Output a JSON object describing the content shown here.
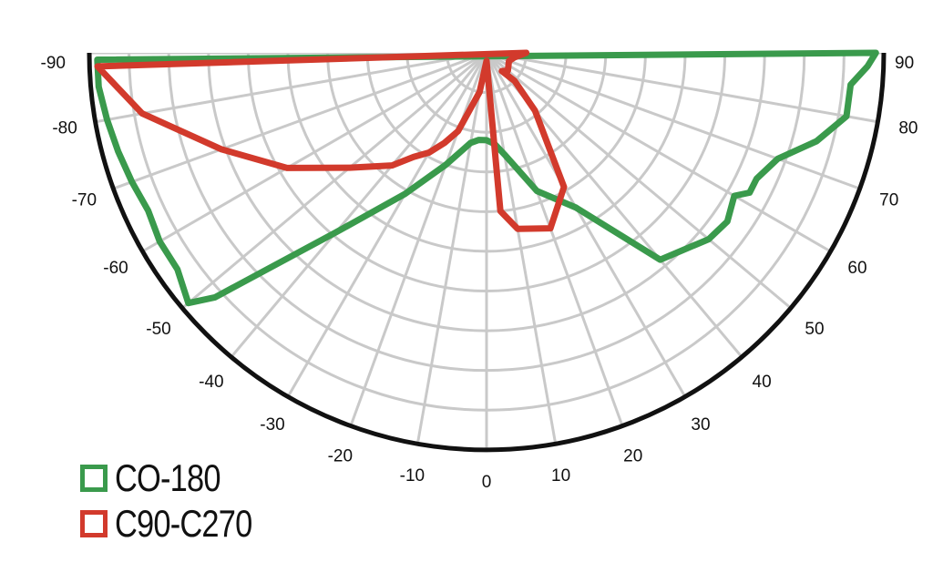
{
  "chart_data": {
    "type": "polar",
    "angle_ticks": [
      -90,
      -80,
      -70,
      -60,
      -50,
      -40,
      -30,
      -20,
      -10,
      0,
      10,
      20,
      30,
      40,
      50,
      60,
      70,
      80,
      90
    ],
    "angle_tick_labels": [
      "-90",
      "-80",
      "-70",
      "-60",
      "-50",
      "-40",
      "-30",
      "-20",
      "-10",
      "0",
      "10",
      "20",
      "30",
      "40",
      "50",
      "60",
      "70",
      "80",
      "90"
    ],
    "angle_range": [
      -90,
      90
    ],
    "radial_range": [
      0,
      1
    ],
    "grid": true,
    "legend_placement": "bottom-left",
    "series": [
      {
        "name": "CO-180",
        "color": "#3a9a4c",
        "theta": [
          -89,
          -85,
          -80,
          -75,
          -70,
          -65,
          -60,
          -55,
          -50,
          -48,
          -40,
          -30,
          -20,
          -10,
          -5,
          0,
          5,
          10,
          20,
          30,
          40,
          50,
          55,
          60,
          62,
          65,
          70,
          75,
          80,
          85,
          88,
          90
        ],
        "r": [
          0.98,
          0.98,
          0.97,
          0.96,
          0.95,
          0.94,
          0.95,
          0.95,
          0.98,
          0.92,
          0.59,
          0.41,
          0.3,
          0.23,
          0.22,
          0.22,
          0.23,
          0.26,
          0.37,
          0.45,
          0.68,
          0.73,
          0.74,
          0.72,
          0.75,
          0.75,
          0.78,
          0.86,
          0.92,
          0.92,
          0.96,
          0.98
        ]
      },
      {
        "name": "C90-C270",
        "color": "#d23a2c",
        "theta": [
          -88,
          -80,
          -70,
          -60,
          -50,
          -40,
          -35,
          -30,
          -25,
          -20,
          -10,
          0,
          5,
          10,
          20,
          30,
          40,
          45,
          40,
          50,
          70,
          80,
          90
        ],
        "r": [
          0.98,
          0.88,
          0.71,
          0.58,
          0.45,
          0.37,
          0.32,
          0.29,
          0.25,
          0.21,
          0.1,
          0.02,
          0.4,
          0.45,
          0.47,
          0.39,
          0.19,
          0.1,
          0.06,
          0.07,
          0.06,
          0.07,
          0.1
        ]
      }
    ]
  },
  "legend": [
    {
      "label": "CO-180",
      "color": "#3a9a4c"
    },
    {
      "label": "C90-C270",
      "color": "#d23a2c"
    }
  ]
}
